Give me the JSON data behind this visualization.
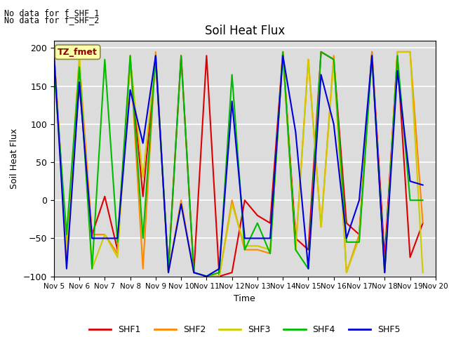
{
  "title": "Soil Heat Flux",
  "xlabel": "Time",
  "ylabel": "Soil Heat Flux",
  "ylim": [
    -100,
    210
  ],
  "yticks": [
    -100,
    -50,
    0,
    50,
    100,
    150,
    200
  ],
  "bg_color": "#dcdcdc",
  "annotation_text1": "No data for f_SHF_1",
  "annotation_text2": "No data for f_SHF_2",
  "box_label": "TZ_fmet",
  "x_labels": [
    "Nov 5",
    "Nov 6",
    "Nov 7",
    "Nov 8",
    "Nov 9",
    "Nov 10",
    "Nov 11",
    "Nov 12",
    "Nov 13",
    "Nov 14",
    "Nov 15",
    "Nov 16",
    "Nov 17",
    "Nov 18",
    "Nov 19",
    "Nov 20"
  ],
  "x_values": [
    5,
    6,
    7,
    8,
    9,
    10,
    11,
    12,
    13,
    14,
    15,
    16,
    17,
    18,
    19,
    20
  ],
  "series": {
    "SHF1": {
      "color": "#dd0000",
      "data_x": [
        5,
        5.5,
        6,
        6.5,
        7,
        7.5,
        8,
        8.5,
        9,
        9.5,
        10,
        10.5,
        11,
        11.5,
        12,
        12.5,
        13,
        13.5,
        14,
        14.5,
        15,
        15.5,
        16,
        16.5,
        17,
        17.5,
        18,
        18.5,
        19,
        19.5
      ],
      "data_y": [
        195,
        -65,
        155,
        -45,
        5,
        -65,
        185,
        5,
        185,
        -90,
        190,
        -95,
        190,
        -100,
        -95,
        0,
        -20,
        -30,
        195,
        -50,
        -65,
        195,
        185,
        -30,
        -45,
        195,
        -75,
        190,
        -75,
        -30
      ]
    },
    "SHF2": {
      "color": "#ff8800",
      "data_x": [
        5,
        5.5,
        6,
        6.5,
        7,
        7.5,
        8,
        8.5,
        9,
        9.5,
        10,
        10.5,
        11,
        11.5,
        12,
        12.5,
        13,
        13.5,
        14,
        14.5,
        15,
        15.5,
        16,
        16.5,
        17,
        17.5,
        18,
        18.5,
        19,
        19.5
      ],
      "data_y": [
        190,
        -75,
        185,
        -45,
        -45,
        -70,
        190,
        -90,
        195,
        -95,
        0,
        -95,
        -100,
        -100,
        0,
        -65,
        -65,
        -70,
        195,
        -65,
        185,
        -35,
        190,
        -95,
        -45,
        195,
        -95,
        195,
        195,
        -30
      ]
    },
    "SHF3": {
      "color": "#cccc00",
      "data_x": [
        5,
        5.5,
        6,
        6.5,
        7,
        7.5,
        8,
        8.5,
        9,
        9.5,
        10,
        10.5,
        11,
        11.5,
        12,
        12.5,
        13,
        13.5,
        14,
        14.5,
        15,
        15.5,
        16,
        16.5,
        17,
        17.5,
        18,
        18.5,
        19,
        19.5
      ],
      "data_y": [
        195,
        -65,
        190,
        -90,
        -45,
        -75,
        185,
        30,
        190,
        -95,
        -5,
        -95,
        -100,
        -100,
        -5,
        -60,
        -60,
        -65,
        195,
        -65,
        185,
        -35,
        185,
        -95,
        -50,
        190,
        -95,
        195,
        195,
        -95
      ]
    },
    "SHF4": {
      "color": "#00bb00",
      "data_x": [
        5,
        5.5,
        6,
        6.5,
        7,
        7.5,
        8,
        8.5,
        9,
        9.5,
        10,
        10.5,
        11,
        11.5,
        12,
        12.5,
        13,
        13.5,
        14,
        14.5,
        15,
        15.5,
        16,
        16.5,
        17,
        17.5,
        18,
        18.5,
        19,
        19.5
      ],
      "data_y": [
        175,
        -45,
        175,
        -90,
        185,
        -55,
        190,
        -50,
        190,
        -90,
        190,
        -95,
        -100,
        -95,
        165,
        -65,
        -30,
        -70,
        195,
        -65,
        -90,
        195,
        185,
        -55,
        -55,
        190,
        -95,
        190,
        0,
        0
      ]
    },
    "SHF5": {
      "color": "#0000dd",
      "data_x": [
        5,
        5.5,
        6,
        6.5,
        7,
        7.5,
        8,
        8.5,
        9,
        9.5,
        10,
        10.5,
        11,
        11.5,
        12,
        12.5,
        13,
        13.5,
        14,
        14.5,
        15,
        15.5,
        16,
        16.5,
        17,
        17.5,
        18,
        18.5,
        19,
        19.5
      ],
      "data_y": [
        195,
        -90,
        155,
        -50,
        -50,
        -50,
        145,
        75,
        190,
        -95,
        -5,
        -95,
        -100,
        -90,
        130,
        -50,
        -50,
        -50,
        190,
        90,
        -90,
        165,
        100,
        -50,
        0,
        190,
        -95,
        170,
        25,
        20
      ]
    }
  },
  "legend_entries": [
    "SHF1",
    "SHF2",
    "SHF3",
    "SHF4",
    "SHF5"
  ],
  "legend_colors": [
    "#dd0000",
    "#ff8800",
    "#cccc00",
    "#00bb00",
    "#0000dd"
  ]
}
